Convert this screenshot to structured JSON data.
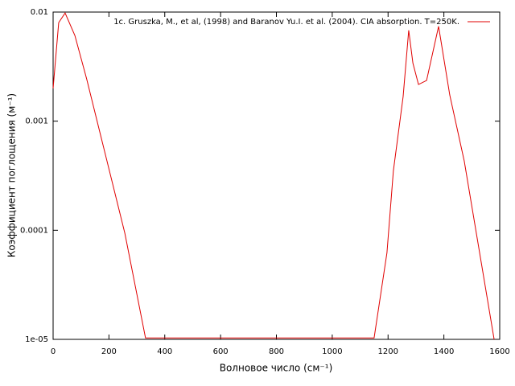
{
  "chart_data": {
    "type": "line",
    "xlabel": "Волновое число (см⁻¹)",
    "ylabel": "Коэффициент поглощения (м⁻¹)",
    "x": [
      0,
      20,
      43,
      78,
      120,
      257,
      331,
      1150,
      1196,
      1219,
      1254,
      1274,
      1289,
      1309,
      1338,
      1381,
      1421,
      1473,
      1580
    ],
    "series": [
      {
        "name": "1c. Gruszka, M., et al, (1998) and Baranov Yu.I. et al. (2004). CIA absorption. T=250K.",
        "color": "#e00000",
        "values": [
          0.002,
          0.008,
          0.0098,
          0.0061,
          0.00245,
          9.4e-05,
          1.03e-05,
          1.03e-05,
          6.2e-05,
          0.00035,
          0.00168,
          0.0068,
          0.0034,
          0.00217,
          0.00236,
          0.0074,
          0.00174,
          0.00043,
          1e-05
        ]
      }
    ],
    "xlim": [
      0,
      1600
    ],
    "xticks": [
      0,
      200,
      400,
      600,
      800,
      1000,
      1200,
      1400,
      1600
    ],
    "ylim": [
      1e-05,
      0.01
    ],
    "yticks": [
      0.01,
      0.001,
      0.0001,
      {
        "value": 1e-05,
        "label": "1e-05"
      }
    ],
    "yscale": "log",
    "grid": false,
    "legend": "top right"
  }
}
